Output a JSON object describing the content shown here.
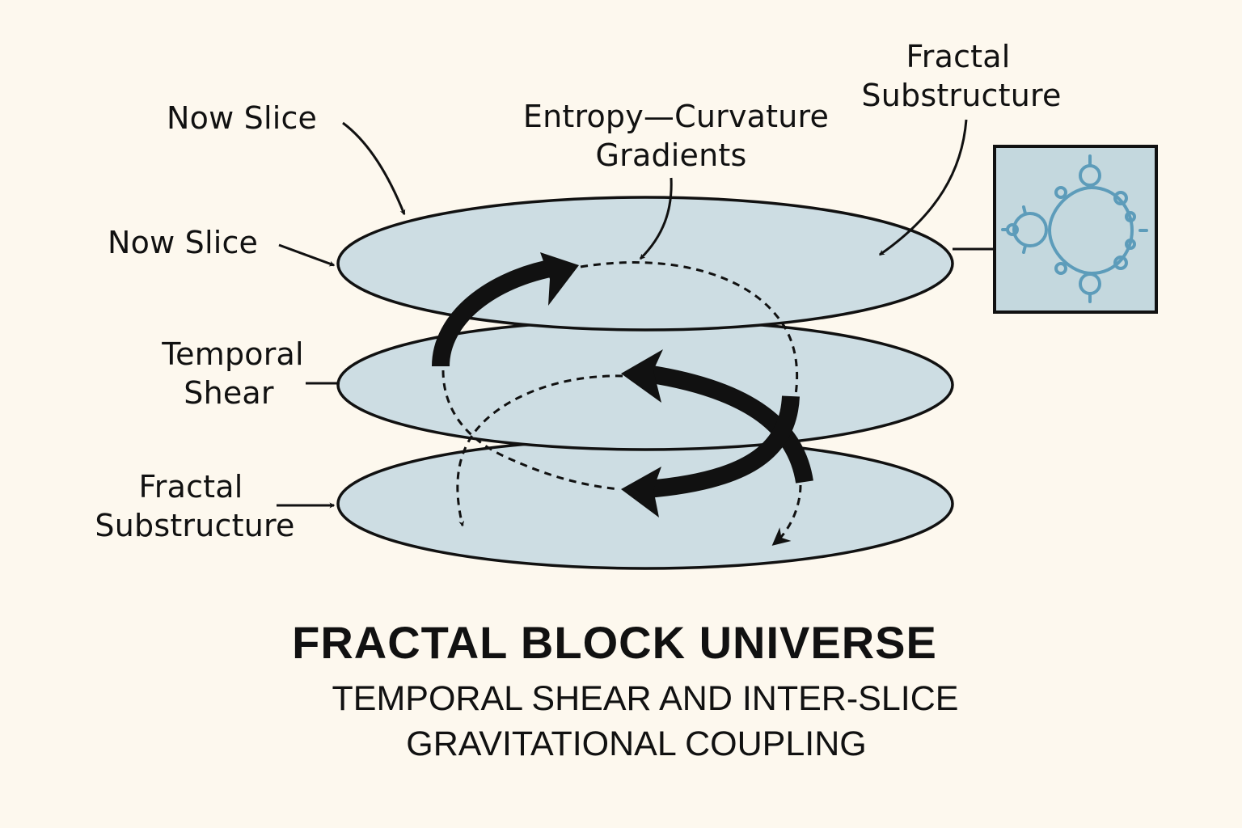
{
  "labels": {
    "now_slice_top": "Now Slice",
    "now_slice_side": "Now Slice",
    "entropy_curvature": [
      "Entropy—Curvature",
      "Gradients"
    ],
    "fractal_top": [
      "Fractal",
      "Substructure"
    ],
    "temporal_shear": [
      "Temporal",
      "Shear"
    ],
    "fractal_bottom": [
      "Fractal",
      "Substructure"
    ]
  },
  "title": "FRACTAL BLOCK UNIVERSE",
  "subtitle": [
    "TEMPORAL SHEAR AND INTER-SLICE",
    "GRAVITATIONAL COUPLING"
  ],
  "colors": {
    "background": "#fdf8ee",
    "slice_fill": "#cddde3",
    "fractal_box_fill": "#c4d8de",
    "fractal_color": "#5d9cba",
    "ink": "#111111"
  }
}
